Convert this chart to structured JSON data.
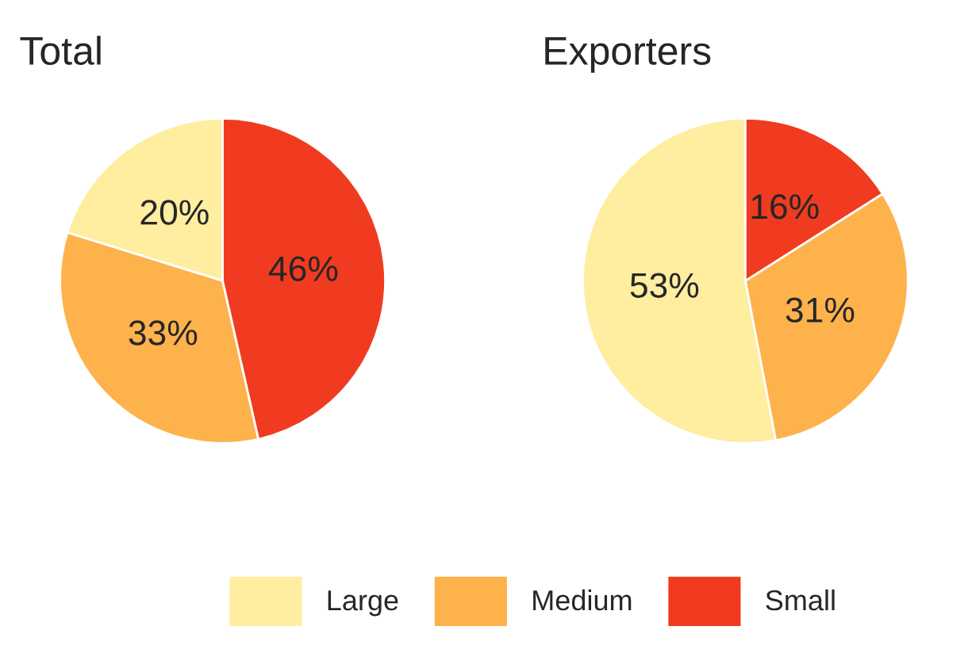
{
  "chart_data": [
    {
      "type": "pie",
      "title": "Total",
      "categories": [
        "Large",
        "Medium",
        "Small"
      ],
      "values": [
        20,
        33,
        46
      ],
      "colors": [
        "#ffeda0",
        "#feb24c",
        "#f03b20"
      ],
      "value_labels": [
        "20%",
        "33%",
        "46%"
      ],
      "legend": "bottom"
    },
    {
      "type": "pie",
      "title": "Exporters",
      "categories": [
        null,
        null,
        null
      ],
      "values": [
        53,
        31,
        16
      ],
      "colors": [
        "#ffeda0",
        "#feb24c",
        "#f03b20"
      ],
      "value_labels": [
        "53%",
        "31%",
        "16%"
      ]
    }
  ]
}
